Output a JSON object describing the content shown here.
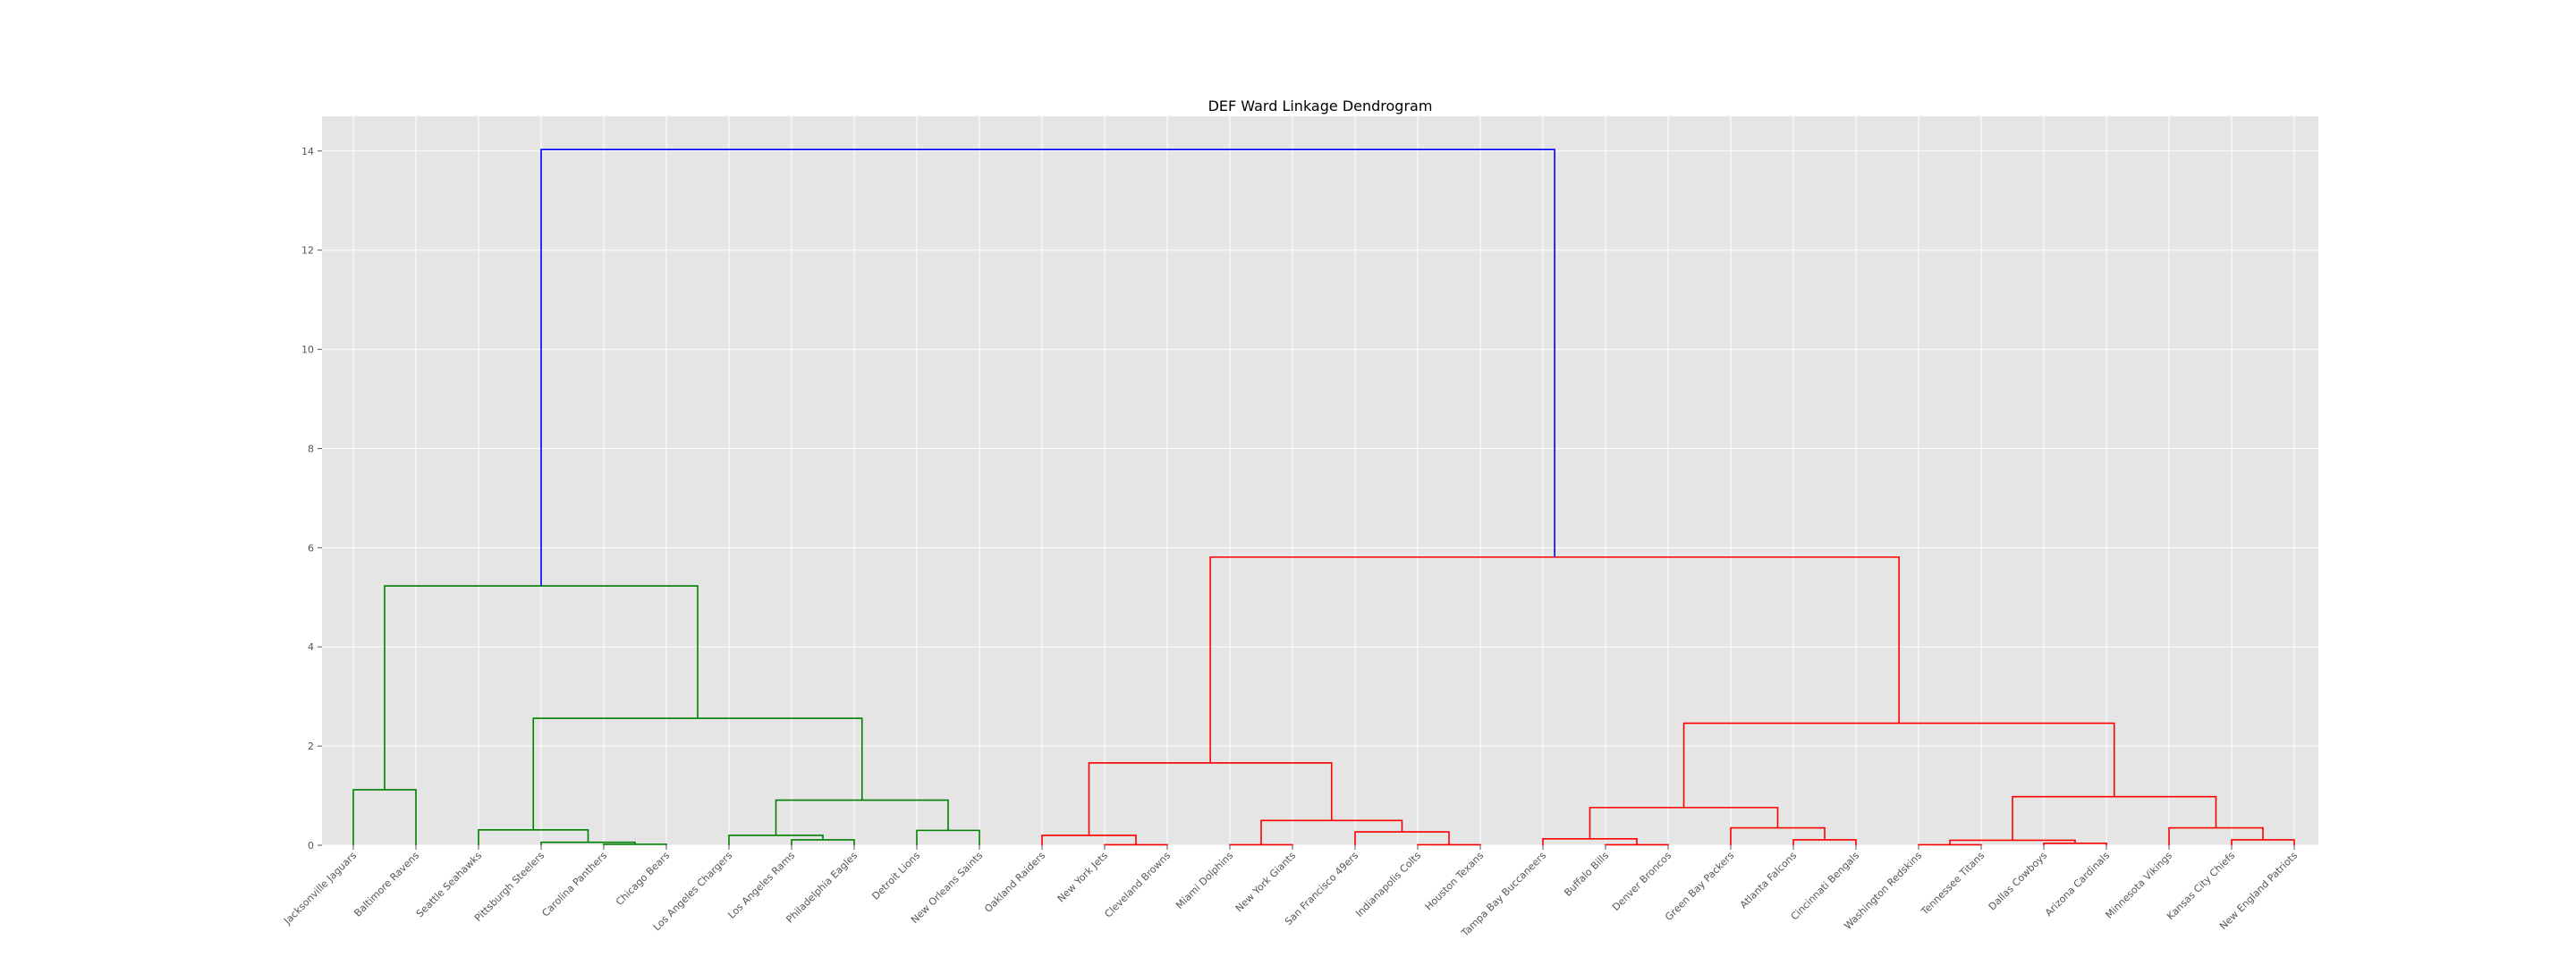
{
  "chart_data": {
    "type": "dendrogram",
    "title": "DEF Ward Linkage Dendrogram",
    "xlabel": "",
    "ylabel": "",
    "ylim": [
      0,
      14.7
    ],
    "yticks": [
      0,
      2,
      4,
      6,
      8,
      10,
      12,
      14
    ],
    "grid": true,
    "colors": {
      "cluster_a": "#008000",
      "cluster_b": "#ff0000",
      "root": "#0000ff",
      "background": "#e5e5e5"
    },
    "leaves": [
      "Jacksonville Jaguars",
      "Baltimore Ravens",
      "Seattle Seahawks",
      "Pittsburgh Steelers",
      "Carolina Panthers",
      "Chicago Bears",
      "Los Angeles Chargers",
      "Los Angeles Rams",
      "Philadelphia Eagles",
      "Detroit Lions",
      "New Orleans Saints",
      "Oakland Raiders",
      "New York Jets",
      "Cleveland Browns",
      "Miami Dolphins",
      "New York Giants",
      "San Francisco 49ers",
      "Indianapolis Colts",
      "Houston Texans",
      "Tampa Bay Buccaneers",
      "Buffalo Bills",
      "Denver Broncos",
      "Green Bay Packers",
      "Atlanta Falcons",
      "Cincinnati Bengals",
      "Washington Redskins",
      "Tennessee Titans",
      "Dallas Cowboys",
      "Arizona Cardinals",
      "Minnesota Vikings",
      "Kansas City Chiefs",
      "New England Patriots"
    ],
    "merges": [
      {
        "id": "m1",
        "left": 0,
        "right": 1,
        "height": 1.12,
        "color": "cluster_a"
      },
      {
        "id": "m2",
        "left": 4,
        "right": 5,
        "height": 0.02,
        "color": "cluster_a"
      },
      {
        "id": "m3",
        "left": 3,
        "right": "m2",
        "height": 0.06,
        "color": "cluster_a"
      },
      {
        "id": "m4",
        "left": 2,
        "right": "m3",
        "height": 0.31,
        "color": "cluster_a"
      },
      {
        "id": "m5",
        "left": 7,
        "right": 8,
        "height": 0.11,
        "color": "cluster_a"
      },
      {
        "id": "m6",
        "left": 6,
        "right": "m5",
        "height": 0.2,
        "color": "cluster_a"
      },
      {
        "id": "m7",
        "left": 9,
        "right": 10,
        "height": 0.3,
        "color": "cluster_a"
      },
      {
        "id": "m8",
        "left": "m6",
        "right": "m7",
        "height": 0.91,
        "color": "cluster_a"
      },
      {
        "id": "m9",
        "left": "m4",
        "right": "m8",
        "height": 2.56,
        "color": "cluster_a"
      },
      {
        "id": "m10",
        "left": "m1",
        "right": "m9",
        "height": 5.23,
        "color": "cluster_a"
      },
      {
        "id": "m11",
        "left": 12,
        "right": 13,
        "height": 0.01,
        "color": "cluster_b"
      },
      {
        "id": "m12",
        "left": 11,
        "right": "m11",
        "height": 0.2,
        "color": "cluster_b"
      },
      {
        "id": "m13",
        "left": 14,
        "right": 15,
        "height": 0.01,
        "color": "cluster_b"
      },
      {
        "id": "m14",
        "left": 17,
        "right": 18,
        "height": 0.01,
        "color": "cluster_b"
      },
      {
        "id": "m15",
        "left": 16,
        "right": "m14",
        "height": 0.27,
        "color": "cluster_b"
      },
      {
        "id": "m16",
        "left": "m13",
        "right": "m15",
        "height": 0.5,
        "color": "cluster_b"
      },
      {
        "id": "m17",
        "left": "m12",
        "right": "m16",
        "height": 1.66,
        "color": "cluster_b"
      },
      {
        "id": "m18",
        "left": 20,
        "right": 21,
        "height": 0.01,
        "color": "cluster_b"
      },
      {
        "id": "m19",
        "left": 19,
        "right": "m18",
        "height": 0.13,
        "color": "cluster_b"
      },
      {
        "id": "m20",
        "left": 23,
        "right": 24,
        "height": 0.11,
        "color": "cluster_b"
      },
      {
        "id": "m21",
        "left": 22,
        "right": "m20",
        "height": 0.35,
        "color": "cluster_b"
      },
      {
        "id": "m22",
        "left": "m19",
        "right": "m21",
        "height": 0.76,
        "color": "cluster_b"
      },
      {
        "id": "m23",
        "left": 25,
        "right": 26,
        "height": 0.01,
        "color": "cluster_b"
      },
      {
        "id": "m24",
        "left": 27,
        "right": 28,
        "height": 0.04,
        "color": "cluster_b"
      },
      {
        "id": "m25",
        "left": "m23",
        "right": "m24",
        "height": 0.1,
        "color": "cluster_b"
      },
      {
        "id": "m26",
        "left": 30,
        "right": 31,
        "height": 0.11,
        "color": "cluster_b"
      },
      {
        "id": "m27",
        "left": 29,
        "right": "m26",
        "height": 0.35,
        "color": "cluster_b"
      },
      {
        "id": "m28",
        "left": "m25",
        "right": "m27",
        "height": 0.98,
        "color": "cluster_b"
      },
      {
        "id": "m29",
        "left": "m22",
        "right": "m28",
        "height": 2.46,
        "color": "cluster_b"
      },
      {
        "id": "m30",
        "left": "m17",
        "right": "m29",
        "height": 5.81,
        "color": "cluster_b"
      },
      {
        "id": "m31",
        "left": "m10",
        "right": "m30",
        "height": 14.03,
        "color": "root"
      }
    ]
  }
}
